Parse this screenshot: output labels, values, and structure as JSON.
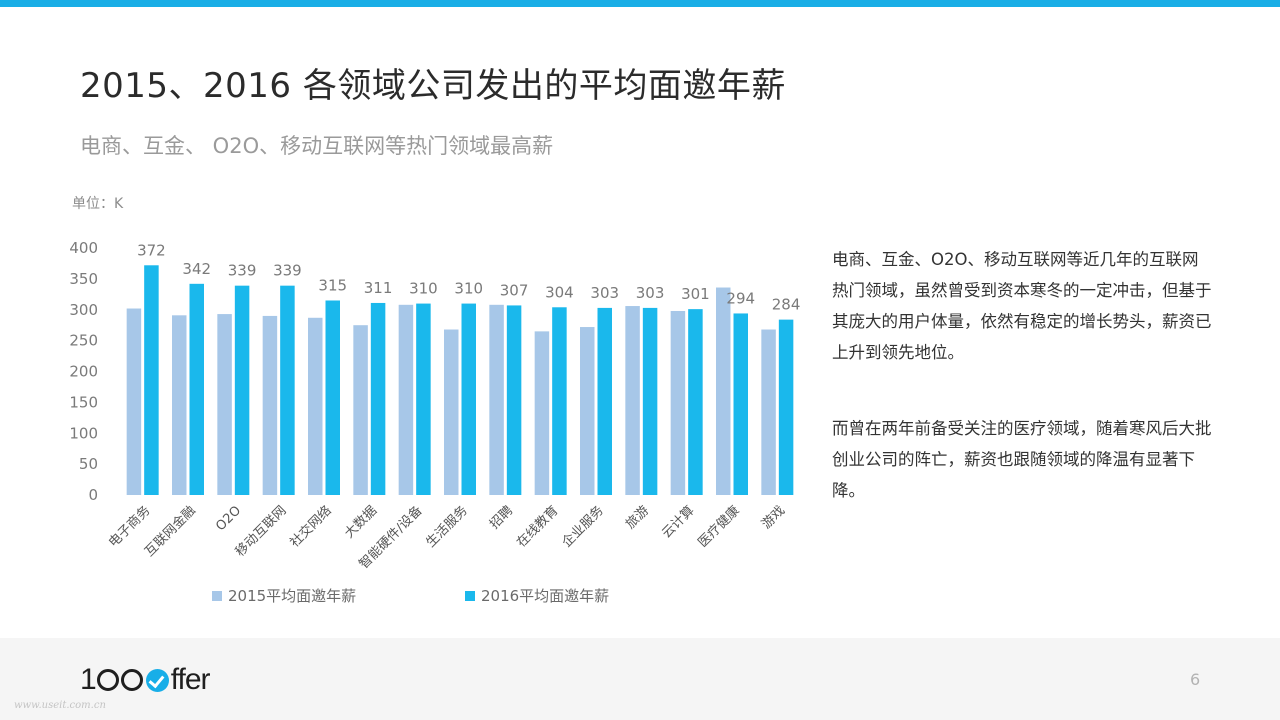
{
  "header": {
    "title": "2015、2016 各领域公司发出的平均面邀年薪",
    "subtitle": "电商、互金、 O2O、移动互联网等热门领域最高薪"
  },
  "chart_data": {
    "type": "bar",
    "unit_label": "单位：K",
    "categories": [
      "电子商务",
      "互联网金融",
      "O2O",
      "移动互联网",
      "社交网络",
      "大数据",
      "智能硬件/设备",
      "生活服务",
      "招聘",
      "在线教育",
      "企业服务",
      "旅游",
      "云计算",
      "医疗健康",
      "游戏"
    ],
    "series": [
      {
        "name": "2015平均面邀年薪",
        "color": "#a7c7e8",
        "values": [
          302,
          291,
          293,
          290,
          287,
          275,
          308,
          268,
          308,
          265,
          272,
          306,
          298,
          336,
          268
        ]
      },
      {
        "name": "2016平均面邀年薪",
        "color": "#1ab8ec",
        "values": [
          372,
          342,
          339,
          339,
          315,
          311,
          310,
          310,
          307,
          304,
          303,
          303,
          301,
          294,
          284
        ]
      }
    ],
    "data_labels": [
      "372",
      "342",
      "339",
      "339",
      "315",
      "311",
      "310",
      "310",
      "307",
      "304",
      "303",
      "303",
      "301",
      "294",
      "284"
    ],
    "yticks": [
      "0",
      "50",
      "100",
      "150",
      "200",
      "250",
      "300",
      "350",
      "400"
    ],
    "ylim": [
      0,
      400
    ],
    "legend_position": "bottom"
  },
  "description": {
    "paragraph1": "电商、互金、O2O、移动互联网等近几年的互联网热门领域，虽然曾受到资本寒冬的一定冲击，但基于其庞大的用户体量，依然有稳定的增长势头，薪资已上升到领先地位。",
    "paragraph2": "而曾在两年前备受关注的医疗领域，随着寒风后大批创业公司的阵亡，薪资也跟随领域的降温有显著下降。"
  },
  "footer": {
    "logo_prefix": "1",
    "logo_suffix": "ffer",
    "page_number": "6",
    "watermark": "www.useit.com.cn"
  }
}
